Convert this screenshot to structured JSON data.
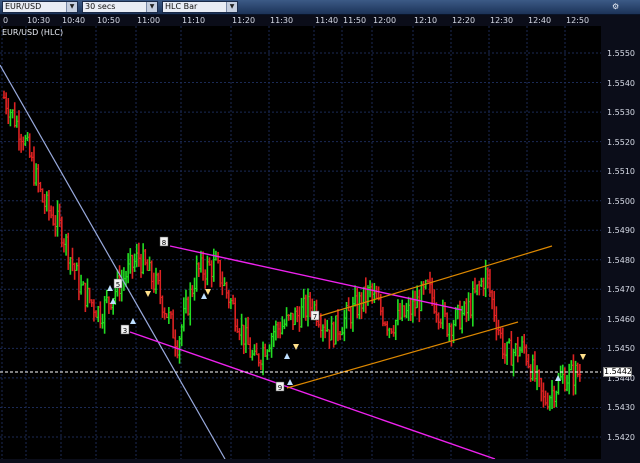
{
  "toolbar": {
    "symbol": "EUR/USD",
    "interval": "30 secs",
    "chart_type": "HLC Bar",
    "corner_icon": "gear-icon"
  },
  "time_axis": {
    "labels": [
      "0",
      "10:30",
      "10:40",
      "10:50",
      "11:00",
      "11:10",
      "11:20",
      "11:30",
      "11:40",
      "11:50",
      "12:00",
      "12:10",
      "12:20",
      "12:30",
      "12:40",
      "12:50"
    ]
  },
  "chart": {
    "title": "EUR/USD (HLC)",
    "current_price": "1.5442",
    "price_labels": [
      "1.5550",
      "1.5540",
      "1.5530",
      "1.5520",
      "1.5510",
      "1.5500",
      "1.5490",
      "1.5480",
      "1.5470",
      "1.5460",
      "1.5450",
      "1.5440",
      "1.5430",
      "1.5420"
    ],
    "wave_labels": [
      "5",
      "3",
      "8",
      "7",
      "9"
    ],
    "colors": {
      "up_bar": "#22dd22",
      "down_bar": "#dd2222",
      "channel_magenta": "#ee22ee",
      "channel_orange": "#dd8800",
      "trendline": "#99aadd",
      "grid": "#1b2a55"
    }
  },
  "chart_data": {
    "type": "line",
    "title": "EUR/USD (HLC)",
    "xlabel": "",
    "ylabel": "",
    "x": [
      "10:25",
      "10:30",
      "10:35",
      "10:40",
      "10:45",
      "10:50",
      "10:55",
      "11:00",
      "11:05",
      "11:10",
      "11:15",
      "11:20",
      "11:25",
      "11:30",
      "11:35",
      "11:40",
      "11:45",
      "11:50",
      "11:55",
      "12:00",
      "12:05",
      "12:10",
      "12:15",
      "12:20",
      "12:25",
      "12:30",
      "12:35",
      "12:40",
      "12:45",
      "12:50",
      "12:55"
    ],
    "series": [
      {
        "values": [
          1.5535,
          1.5522,
          1.55,
          1.549,
          1.547,
          1.5462,
          1.5472,
          1.5481,
          1.547,
          1.5452,
          1.5476,
          1.5478,
          1.5462,
          1.5445,
          1.5456,
          1.546,
          1.5465,
          1.5455,
          1.5462,
          1.5469,
          1.5458,
          1.5462,
          1.547,
          1.5458,
          1.5462,
          1.5475,
          1.5448,
          1.545,
          1.5432,
          1.544,
          1.5442
        ]
      }
    ],
    "ylim": [
      1.5414,
      1.556
    ],
    "grid": true
  }
}
